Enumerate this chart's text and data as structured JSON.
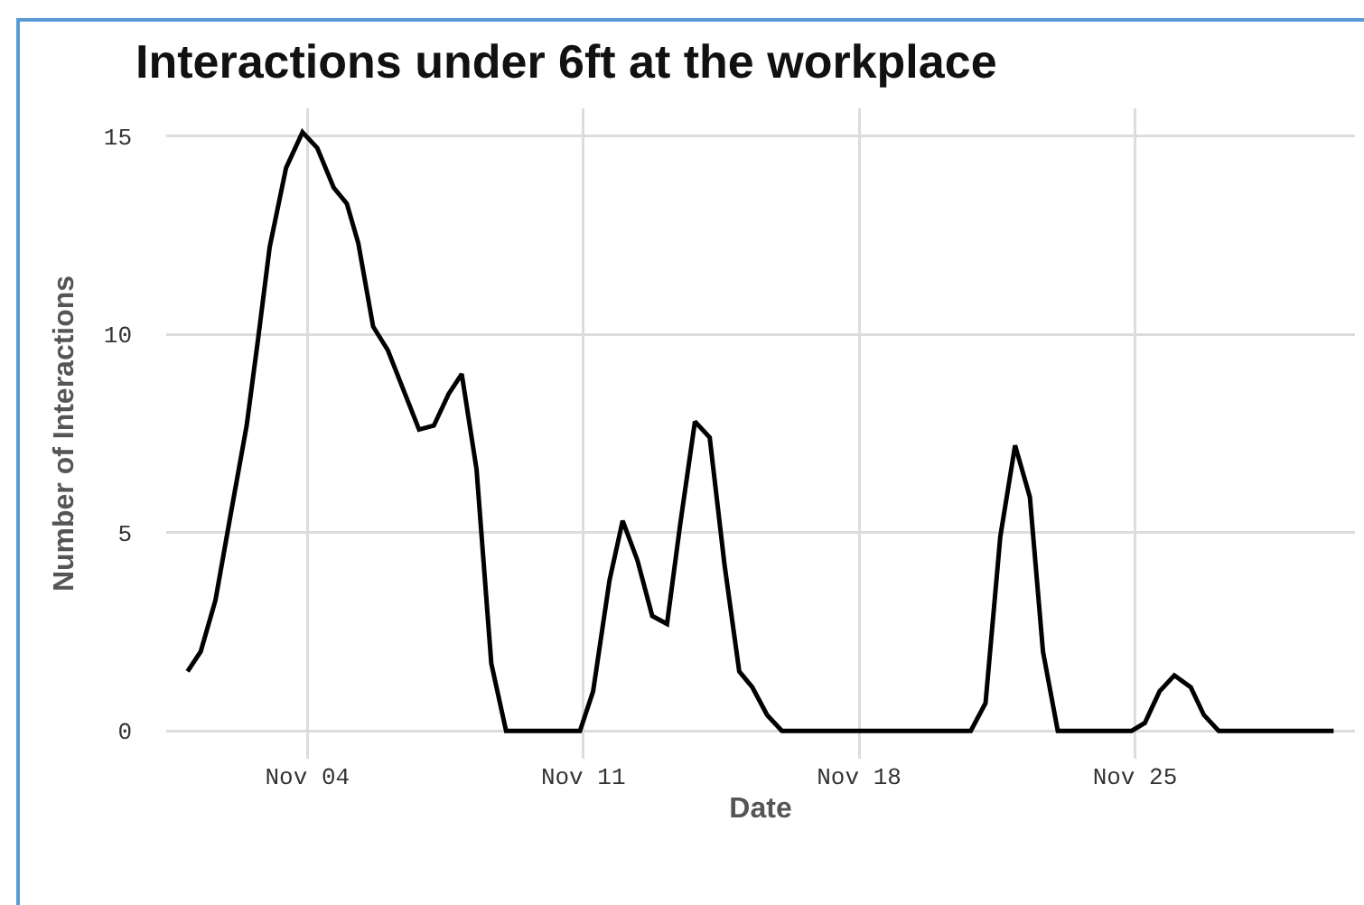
{
  "chart_data": {
    "type": "line",
    "title": "Interactions under 6ft at the workplace",
    "xlabel": "Date",
    "ylabel": "Number of Interactions",
    "x": [
      "--10-31T23:00",
      "--11-01T07:00",
      "--11-01T16:00",
      "--11-02T01:00",
      "--11-02T11:00",
      "--11-02T18:00",
      "--11-03T01:00",
      "--11-03T11:00",
      "--11-03T21:00",
      "--11-04T06:00",
      "--11-04T16:00",
      "--11-05T00:00",
      "--11-05T07:00",
      "--11-05T16:00",
      "--11-06T01:00",
      "--11-06T20:00",
      "--11-07T05:00",
      "--11-07T14:00",
      "--11-07T22:00",
      "--11-08T07:00",
      "--11-08T16:00",
      "--11-09T01:00",
      "--11-10T22:00",
      "--11-11T06:00",
      "--11-11T16:00",
      "--11-12T00:00",
      "--11-12T09:00",
      "--11-12T18:00",
      "--11-13T03:00",
      "--11-13T11:00",
      "--11-13T20:00",
      "--11-14T05:00",
      "--11-14T14:00",
      "--11-14T23:00",
      "--11-15T07:00",
      "--11-15T16:00",
      "--11-16T01:00",
      "--11-20T20:00",
      "--11-21T05:00",
      "--11-21T14:00",
      "--11-21T23:00",
      "--11-22T08:00",
      "--11-22T16:00",
      "--11-23T01:00",
      "--11-24T22:00",
      "--11-25T06:00",
      "--11-25T15:00",
      "--11-26T00:00",
      "--11-26T10:00",
      "--11-26T18:00",
      "--11-27T03:00",
      "--11-30T01:00"
    ],
    "series": [
      {
        "color": "#000000",
        "values": [
          1.5,
          2,
          3.3,
          5.4,
          7.7,
          9.9,
          12.2,
          14.2,
          15.1,
          14.7,
          13.7,
          13.3,
          12.3,
          10.2,
          9.6,
          7.6,
          7.7,
          8.5,
          9,
          6.6,
          1.7,
          0,
          0,
          1,
          3.8,
          5.3,
          4.3,
          2.9,
          2.7,
          5.2,
          7.8,
          7.4,
          4.2,
          1.5,
          1.1,
          0.4,
          0,
          0,
          0.7,
          4.9,
          7.2,
          5.9,
          2,
          0,
          0,
          0.2,
          1,
          1.4,
          1.1,
          0.4,
          0,
          0
        ]
      }
    ],
    "xlim": [
      "--10-31T10:00",
      "--11-30T14:00"
    ],
    "xticks": [
      {
        "value": "--11-04",
        "label": "Nov 04"
      },
      {
        "value": "--11-11",
        "label": "Nov 11"
      },
      {
        "value": "--11-18",
        "label": "Nov 18"
      },
      {
        "value": "--11-25",
        "label": "Nov 25"
      }
    ],
    "ylim": [
      -0.7,
      15.7
    ],
    "yticks": [
      0,
      5,
      10,
      15
    ],
    "grid": true,
    "marker": "none",
    "line_style": "solid"
  }
}
